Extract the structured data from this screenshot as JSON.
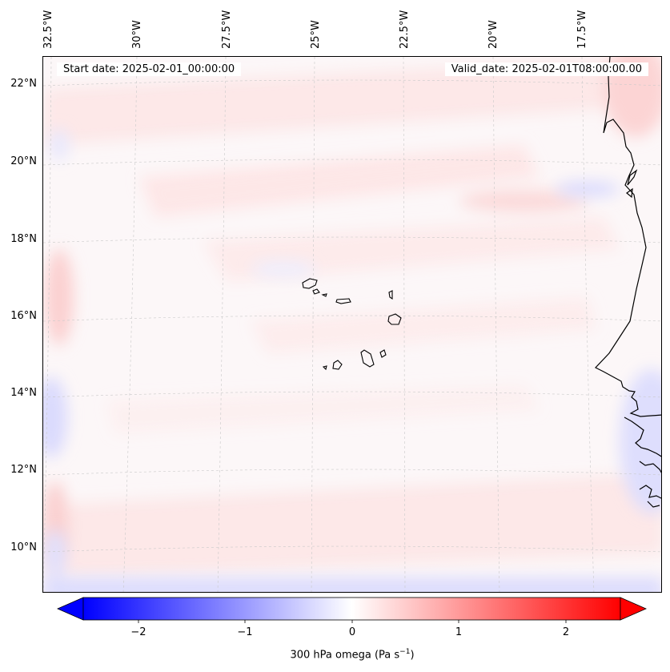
{
  "map": {
    "start_date": "Start date: 2025-02-01_00:00:00",
    "valid_date": "Valid_date: 2025-02-01T08:00:00.00",
    "lon_labels": [
      "32.5°W",
      "30°W",
      "27.5°W",
      "25°W",
      "22.5°W",
      "20°W",
      "17.5°W"
    ],
    "lat_labels": [
      "22°N",
      "20°N",
      "18°N",
      "16°N",
      "14°N",
      "12°N",
      "10°N"
    ]
  },
  "colorbar": {
    "label": "300 hPa omega (Pa s",
    "label_exp": "−1",
    "label_close": ")",
    "ticks": [
      "−2",
      "−1",
      "0",
      "1",
      "2"
    ],
    "min": -2.7,
    "max": 2.7,
    "colors": {
      "neg": "#0000ff",
      "mid": "#ffffff",
      "pos": "#ff0000"
    }
  }
}
